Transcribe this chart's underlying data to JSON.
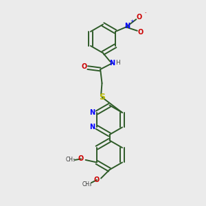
{
  "bg_color": "#ebebeb",
  "bond_color": "#2d5a27",
  "N_color": "#0000ff",
  "O_color": "#cc0000",
  "S_color": "#b8b800",
  "lw": 1.4,
  "fs": 7.0,
  "xlim": [
    0,
    10
  ],
  "ylim": [
    0,
    10
  ]
}
